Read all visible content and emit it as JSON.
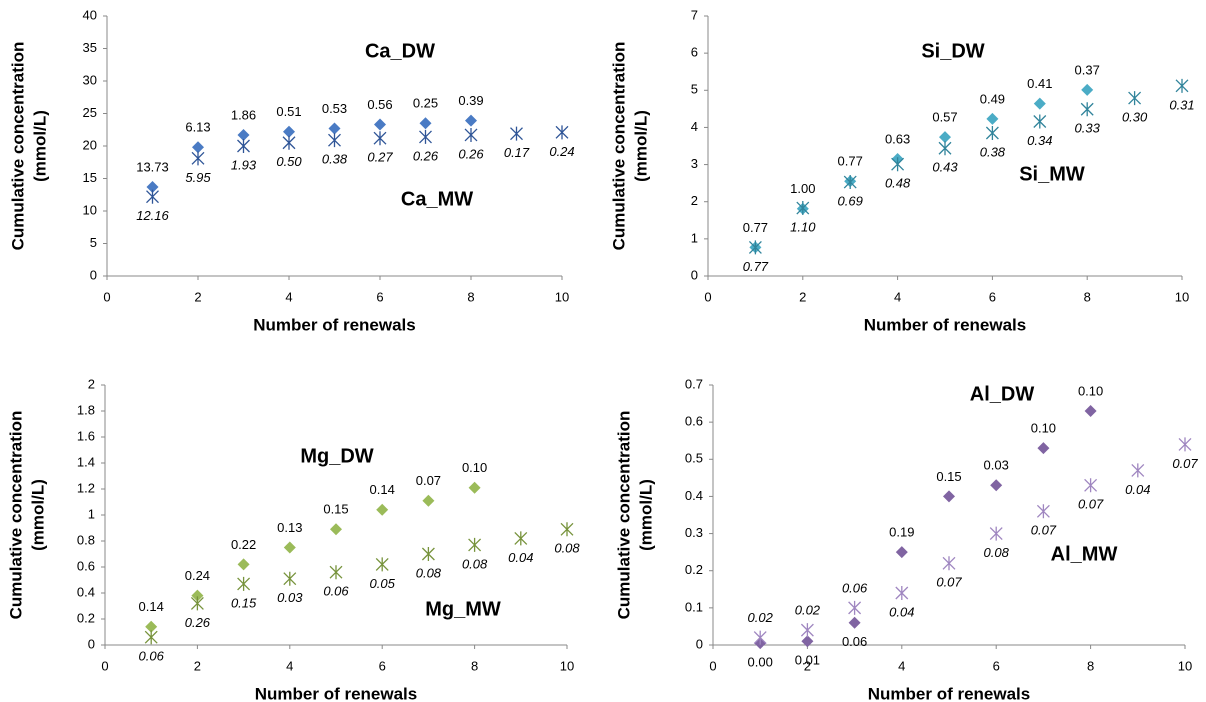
{
  "chart_data": [
    {
      "type": "scatter",
      "xlabel": "Number of renewals",
      "ylabel": [
        "Cumulative concentration",
        "(mmol/L)"
      ],
      "xlim": [
        0,
        10
      ],
      "xticks": [
        0,
        2,
        4,
        6,
        8,
        10
      ],
      "ylim": [
        0,
        40
      ],
      "yticks": [
        0,
        5,
        10,
        15,
        20,
        25,
        30,
        35,
        40
      ],
      "series": [
        {
          "name": "Ca_DW",
          "color": "#4a7bc4",
          "marker": "diamond",
          "label_side": "above",
          "x": [
            1,
            2,
            3,
            4,
            5,
            6,
            7,
            8
          ],
          "values": [
            13.7,
            19.8,
            21.7,
            22.2,
            22.7,
            23.3,
            23.5,
            23.9
          ],
          "point_labels": [
            "13.73",
            "6.13",
            "1.86",
            "0.51",
            "0.53",
            "0.56",
            "0.25",
            "0.39"
          ]
        },
        {
          "name": "Ca_MW",
          "color": "#2f5597",
          "marker": "asterisk",
          "label_side": "below",
          "x": [
            1,
            2,
            3,
            4,
            5,
            6,
            7,
            8,
            9,
            10
          ],
          "values": [
            12.2,
            18.1,
            20.0,
            20.5,
            20.9,
            21.2,
            21.4,
            21.7,
            21.9,
            22.1
          ],
          "point_labels": [
            "12.16",
            "5.95",
            "1.93",
            "0.50",
            "0.38",
            "0.27",
            "0.26",
            "0.26",
            "0.17",
            "0.24"
          ]
        }
      ]
    },
    {
      "type": "scatter",
      "xlabel": "Number of renewals",
      "ylabel": [
        "Cumulative concentration",
        "(mmol/L)"
      ],
      "xlim": [
        0,
        10
      ],
      "xticks": [
        0,
        2,
        4,
        6,
        8,
        10
      ],
      "ylim": [
        0,
        7
      ],
      "yticks": [
        0,
        1,
        2,
        3,
        4,
        5,
        6,
        7
      ],
      "series": [
        {
          "name": "Si_DW",
          "color": "#4bacc6",
          "marker": "diamond",
          "label_side": "above",
          "x": [
            1,
            2,
            3,
            4,
            5,
            6,
            7,
            8
          ],
          "values": [
            0.77,
            1.81,
            2.55,
            3.15,
            3.74,
            4.23,
            4.64,
            5.01
          ],
          "point_labels": [
            "0.77",
            "1.00",
            "0.77",
            "0.63",
            "0.57",
            "0.49",
            "0.41",
            "0.37"
          ]
        },
        {
          "name": "Si_MW",
          "color": "#31849b",
          "marker": "asterisk",
          "label_side": "below",
          "x": [
            1,
            2,
            3,
            4,
            5,
            6,
            7,
            8,
            9,
            10
          ],
          "values": [
            0.77,
            1.83,
            2.53,
            3.01,
            3.44,
            3.85,
            4.16,
            4.49,
            4.79,
            5.12
          ],
          "point_labels": [
            "0.77",
            "1.10",
            "0.69",
            "0.48",
            "0.43",
            "0.38",
            "0.34",
            "0.33",
            "0.30",
            "0.31"
          ]
        }
      ]
    },
    {
      "type": "scatter",
      "xlabel": "Number of renewals",
      "ylabel": [
        "Cumulative concentration",
        "(mmol/L)"
      ],
      "xlim": [
        0,
        10
      ],
      "xticks": [
        0,
        2,
        4,
        6,
        8,
        10
      ],
      "ylim": [
        0,
        2
      ],
      "yticks": [
        0,
        0.2,
        0.4,
        0.6,
        0.8,
        1,
        1.2,
        1.4,
        1.6,
        1.8,
        2
      ],
      "series": [
        {
          "name": "Mg_DW",
          "color": "#9bbb59",
          "marker": "diamond",
          "label_side": "above",
          "x": [
            1,
            2,
            3,
            4,
            5,
            6,
            7,
            8
          ],
          "values": [
            0.14,
            0.38,
            0.62,
            0.75,
            0.89,
            1.04,
            1.11,
            1.21
          ],
          "point_labels": [
            "0.14",
            "0.24",
            "0.22",
            "0.13",
            "0.15",
            "0.14",
            "0.07",
            "0.10"
          ]
        },
        {
          "name": "Mg_MW",
          "color": "#77933c",
          "marker": "asterisk",
          "label_side": "below",
          "x": [
            1,
            2,
            3,
            4,
            5,
            6,
            7,
            8,
            9,
            10
          ],
          "values": [
            0.06,
            0.32,
            0.47,
            0.51,
            0.56,
            0.62,
            0.7,
            0.77,
            0.82,
            0.89
          ],
          "point_labels": [
            "0.06",
            "0.26",
            "0.15",
            "0.03",
            "0.06",
            "0.05",
            "0.08",
            "0.08",
            "0.04",
            "0.08"
          ]
        }
      ]
    },
    {
      "type": "scatter",
      "xlabel": "Number of renewals",
      "ylabel": [
        "Cumulative concentration",
        "(mmol/L)"
      ],
      "xlim": [
        0,
        10
      ],
      "xticks": [
        0,
        2,
        4,
        6,
        8,
        10
      ],
      "ylim": [
        0,
        0.7
      ],
      "yticks": [
        0,
        0.1,
        0.2,
        0.3,
        0.4,
        0.5,
        0.6,
        0.7
      ],
      "series": [
        {
          "name": "Al_DW",
          "color": "#8064a2",
          "marker": "diamond",
          "label_sides": [
            "below",
            "below",
            "below",
            "above",
            "above",
            "above",
            "above",
            "above"
          ],
          "x": [
            1,
            2,
            3,
            4,
            5,
            6,
            7,
            8
          ],
          "values": [
            0.005,
            0.01,
            0.06,
            0.25,
            0.4,
            0.43,
            0.53,
            0.63
          ],
          "point_labels": [
            "0.00",
            "0.01",
            "0.06",
            "0.19",
            "0.15",
            "0.03",
            "0.10",
            "0.10"
          ]
        },
        {
          "name": "Al_MW",
          "color": "#9f86c0",
          "marker": "asterisk",
          "label_sides": [
            "above",
            "above",
            "above",
            "below",
            "below",
            "below",
            "below",
            "below",
            "below",
            "below"
          ],
          "x": [
            1,
            2,
            3,
            4,
            5,
            6,
            7,
            8,
            9,
            10
          ],
          "values": [
            0.02,
            0.04,
            0.1,
            0.14,
            0.22,
            0.3,
            0.36,
            0.43,
            0.47,
            0.54
          ],
          "point_labels": [
            "0.02",
            "0.02",
            "0.06",
            "0.04",
            "0.07",
            "0.08",
            "0.07",
            "0.07",
            "0.04",
            "0.07"
          ]
        }
      ]
    }
  ]
}
